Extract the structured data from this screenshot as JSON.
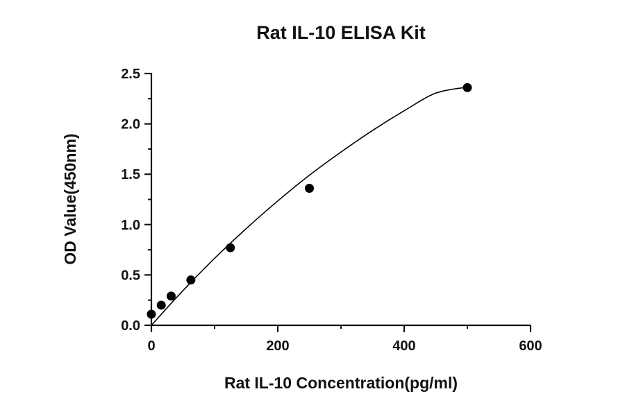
{
  "chart_data": {
    "type": "scatter",
    "title": "Rat IL-10 ELISA Kit",
    "xlabel": "Rat IL-10 Concentration(pg/ml)",
    "ylabel": "OD Value(450nm)",
    "xlim": [
      0,
      600
    ],
    "ylim": [
      0,
      2.5
    ],
    "x_ticks": [
      0,
      200,
      400,
      600
    ],
    "x_tick_labels": [
      "0",
      "200",
      "400",
      "600"
    ],
    "y_ticks": [
      0,
      0.5,
      1.0,
      1.5,
      2.0,
      2.5
    ],
    "y_tick_labels": [
      "0.0",
      "0.5",
      "1.0",
      "1.5",
      "2.0",
      "2.5"
    ],
    "grid": false,
    "series": [
      {
        "x": [
          0,
          15.6,
          31.25,
          62.5,
          125,
          250,
          500
        ],
        "y": [
          0.11,
          0.2,
          0.29,
          0.45,
          0.77,
          1.36,
          2.36
        ],
        "marker": "circle",
        "color": "#000000"
      }
    ],
    "fit_curve": {
      "type": "curve",
      "x_range": [
        0,
        500
      ],
      "points": [
        [
          0,
          0.0
        ],
        [
          50,
          0.345
        ],
        [
          100,
          0.665
        ],
        [
          150,
          0.96
        ],
        [
          200,
          1.235
        ],
        [
          250,
          1.49
        ],
        [
          300,
          1.72
        ],
        [
          350,
          1.935
        ],
        [
          400,
          2.13
        ],
        [
          450,
          2.305
        ],
        [
          500,
          2.365
        ]
      ],
      "color": "#000000"
    }
  }
}
